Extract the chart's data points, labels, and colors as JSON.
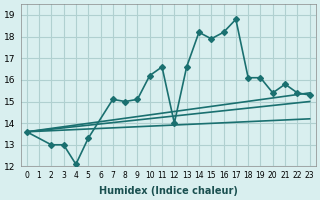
{
  "xlabel": "Humidex (Indice chaleur)",
  "ylabel": "",
  "background_color": "#d9efef",
  "grid_color": "#b0d0d0",
  "line_color": "#1a7070",
  "xlim": [
    -0.5,
    23.5
  ],
  "ylim": [
    12,
    19.5
  ],
  "xticks": [
    0,
    1,
    2,
    3,
    4,
    5,
    6,
    7,
    8,
    9,
    10,
    11,
    12,
    13,
    14,
    15,
    16,
    17,
    18,
    19,
    20,
    21,
    22,
    23
  ],
  "yticks": [
    12,
    13,
    14,
    15,
    16,
    17,
    18,
    19
  ],
  "main_series": {
    "x": [
      0,
      2,
      3,
      4,
      5,
      7,
      8,
      9,
      10,
      11,
      12,
      13,
      14,
      15,
      16,
      17,
      18,
      19,
      20,
      21,
      22,
      23
    ],
    "y": [
      13.6,
      13.0,
      13.0,
      12.1,
      13.3,
      15.1,
      15.0,
      15.1,
      16.2,
      16.6,
      14.0,
      16.6,
      18.2,
      17.9,
      18.2,
      18.8,
      16.1,
      16.1,
      15.4,
      15.8,
      15.4,
      15.3
    ],
    "marker": "D",
    "markersize": 3,
    "linewidth": 1.2
  },
  "trend_lines": [
    {
      "x": [
        0,
        23
      ],
      "y": [
        13.6,
        15.0
      ]
    },
    {
      "x": [
        0,
        23
      ],
      "y": [
        13.6,
        15.4
      ]
    },
    {
      "x": [
        0,
        23
      ],
      "y": [
        13.6,
        14.2
      ]
    }
  ]
}
